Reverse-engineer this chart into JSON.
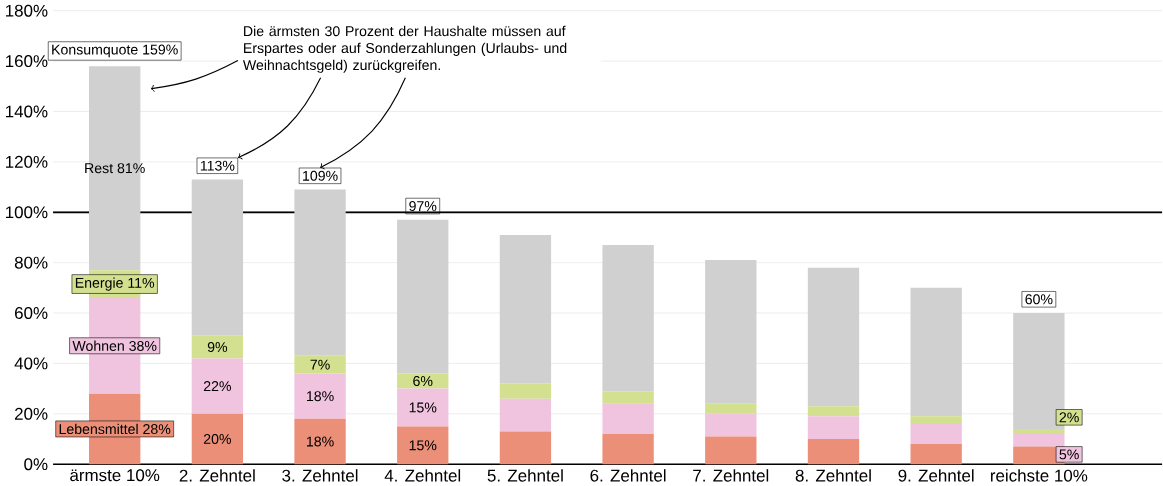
{
  "chart_data": {
    "type": "bar",
    "stacked": true,
    "grid": "y",
    "categories": [
      "ärmste 10%",
      "2. Zehntel",
      "3. Zehntel",
      "4. Zehntel",
      "5. Zehntel",
      "6. Zehntel",
      "7. Zehntel",
      "8. Zehntel",
      "9. Zehntel",
      "reichste 10%"
    ],
    "series": [
      {
        "color": "#ec8f78",
        "values": [
          28,
          20,
          18,
          15,
          13,
          12,
          11,
          10,
          8,
          7
        ],
        "value_labels": [
          "Lebensmittel 28%",
          "20%",
          "18%",
          "15%",
          null,
          null,
          null,
          null,
          null,
          null
        ]
      },
      {
        "color": "#f0c3df",
        "values": [
          38,
          22,
          18,
          15,
          13,
          12,
          9,
          9,
          8,
          5
        ],
        "value_labels": [
          "Wohnen 38%",
          "22%",
          "18%",
          "15%",
          null,
          null,
          null,
          null,
          null,
          "5%"
        ]
      },
      {
        "color": "#d2e08f",
        "values": [
          11,
          9,
          7,
          6,
          6,
          5,
          4,
          4,
          3,
          2
        ],
        "value_labels": [
          "Energie 11%",
          "9%",
          "7%",
          "6%",
          null,
          null,
          null,
          null,
          null,
          "2%"
        ]
      },
      {
        "color": "#d0d0d0",
        "values": [
          81,
          62,
          66,
          61,
          59,
          58,
          57,
          55,
          51,
          46
        ],
        "value_labels": [
          "Rest 81%",
          null,
          null,
          null,
          null,
          null,
          null,
          null,
          null,
          null
        ]
      }
    ],
    "totals": [
      "Konsumquote 159%",
      "113%",
      "109%",
      "97%",
      null,
      null,
      null,
      null,
      null,
      "60%"
    ],
    "ylim": [
      0,
      180
    ],
    "yticks": [
      {
        "value": 0,
        "label": "0%"
      },
      {
        "value": 20,
        "label": "20%"
      },
      {
        "value": 40,
        "label": "40%"
      },
      {
        "value": 60,
        "label": "60%"
      },
      {
        "value": 80,
        "label": "80%"
      },
      {
        "value": 100,
        "label": "100%"
      },
      {
        "value": 120,
        "label": "120%"
      },
      {
        "value": 140,
        "label": "140%"
      },
      {
        "value": 160,
        "label": "160%"
      },
      {
        "value": 180,
        "label": "180%"
      }
    ],
    "ref_lines": [
      {
        "axis": "y",
        "value": 100,
        "color": "#000000"
      }
    ],
    "annotations": [
      "Die ärmsten 30 Prozent der Haushalte müssen auf Erspartes oder auf Sonderzahlungen (Urlaubs- und Weihnachtsgeld) zurückgreifen."
    ]
  }
}
